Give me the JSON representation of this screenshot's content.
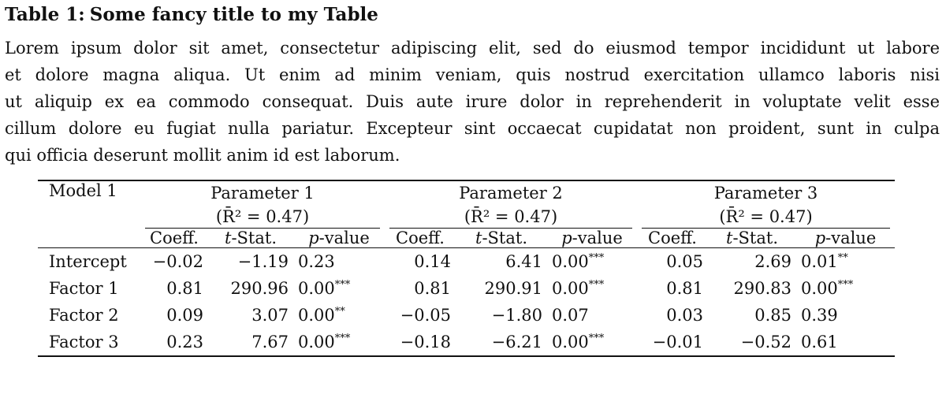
{
  "caption": {
    "label": "Table 1:",
    "title": "Some fancy title to my Table"
  },
  "paragraph": {
    "lines": [
      "Lorem ipsum dolor sit amet, consectetur adipiscing elit, sed do eiusmod tempor incididunt ut labore",
      "et dolore magna aliqua. Ut enim ad minim veniam, quis nostrud exercitation ullamco laboris nisi",
      "ut aliquip ex ea commodo consequat. Duis aute irure dolor in reprehenderit in voluptate velit esse",
      "cillum dolore eu fugiat nulla pariatur. Excepteur sint occaecat cupidatat non proident, sunt in culpa",
      "qui officia deserunt mollit anim id est laborum."
    ]
  },
  "table": {
    "model_label": "Model 1",
    "groups": [
      {
        "name": "Parameter 1",
        "stat": "(R̄² = 0.47)"
      },
      {
        "name": "Parameter 2",
        "stat": "(R̄² = 0.47)"
      },
      {
        "name": "Parameter 3",
        "stat": "(R̄² = 0.47)"
      }
    ],
    "subheaders": {
      "coeff": "Coeff.",
      "tstat_italic": "t",
      "tstat_rest": "-Stat.",
      "pvalue_italic": "p",
      "pvalue_rest": "-value"
    },
    "rows": [
      {
        "label": "Intercept",
        "cells": [
          {
            "coeff": "−0.02",
            "t": "−1.19",
            "p": "0.23",
            "stars": ""
          },
          {
            "coeff": "0.14",
            "t": "6.41",
            "p": "0.00",
            "stars": "***"
          },
          {
            "coeff": "0.05",
            "t": "2.69",
            "p": "0.01",
            "stars": "**"
          }
        ]
      },
      {
        "label": "Factor 1",
        "cells": [
          {
            "coeff": "0.81",
            "t": "290.96",
            "p": "0.00",
            "stars": "***"
          },
          {
            "coeff": "0.81",
            "t": "290.91",
            "p": "0.00",
            "stars": "***"
          },
          {
            "coeff": "0.81",
            "t": "290.83",
            "p": "0.00",
            "stars": "***"
          }
        ]
      },
      {
        "label": "Factor 2",
        "cells": [
          {
            "coeff": "0.09",
            "t": "3.07",
            "p": "0.00",
            "stars": "**"
          },
          {
            "coeff": "−0.05",
            "t": "−1.80",
            "p": "0.07",
            "stars": ""
          },
          {
            "coeff": "0.03",
            "t": "0.85",
            "p": "0.39",
            "stars": ""
          }
        ]
      },
      {
        "label": "Factor 3",
        "cells": [
          {
            "coeff": "0.23",
            "t": "7.67",
            "p": "0.00",
            "stars": "***"
          },
          {
            "coeff": "−0.18",
            "t": "−6.21",
            "p": "0.00",
            "stars": "***"
          },
          {
            "coeff": "−0.01",
            "t": "−0.52",
            "p": "0.61",
            "stars": ""
          }
        ]
      }
    ]
  }
}
